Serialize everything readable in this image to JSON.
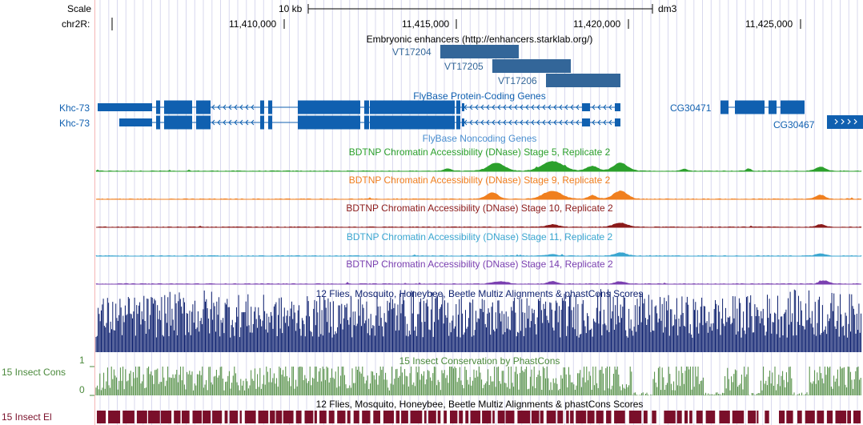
{
  "ruler": {
    "scale_label": "Scale",
    "chrom_label": "chr2R:",
    "scale_bar_label": "10 kb",
    "assembly": "dm3",
    "positions": [
      "11,410,000",
      "11,415,000",
      "11,420,000",
      "11,425,000"
    ]
  },
  "tracks": {
    "enhancers": {
      "title": "Embryonic enhancers (http://enhancers.starklab.org/)",
      "items": [
        "VT17204",
        "VT17205",
        "VT17206"
      ],
      "color": "#336699"
    },
    "coding": {
      "title": "FlyBase Protein-Coding Genes",
      "color": "#1060b0",
      "genes": [
        "Khc-73",
        "Khc-73",
        "CG30471",
        "CG30467"
      ]
    },
    "noncoding": {
      "title": "FlyBase Noncoding Genes",
      "color": "#4a8fd0"
    },
    "dnase": [
      {
        "title": "BDTNP Chromatin Accessibility (DNase) Stage 5, Replicate 2",
        "color": "#2ca02c"
      },
      {
        "title": "BDTNP Chromatin Accessibility (DNase) Stage 9, Replicate 2",
        "color": "#f07f1e"
      },
      {
        "title": "BDTNP Chromatin Accessibility (DNase) Stage 10, Replicate 2",
        "color": "#8b1a1a"
      },
      {
        "title": "BDTNP Chromatin Accessibility (DNase) Stage 11, Replicate 2",
        "color": "#3aa6d0"
      },
      {
        "title": "BDTNP Chromatin Accessibility (DNase) Stage 14, Replicate 2",
        "color": "#7a3fb0"
      }
    ],
    "multiz": {
      "title": "12 Flies, Mosquito, Honeybee, Beetle Multiz Alignments & phastCons Scores",
      "color": "#0c1f6e"
    },
    "cons": {
      "title": "15 Insect Conservation by PhastCons",
      "label": "15 Insect Cons",
      "ymax": "1",
      "ymin": "0",
      "color": "#4b8a3c"
    },
    "elements": {
      "title": "12 Flies, Mosquito, Honeybee, Beetle Multiz Alignments & phastCons Scores",
      "label": "15 Insect El",
      "color": "#7a0f2a"
    }
  }
}
